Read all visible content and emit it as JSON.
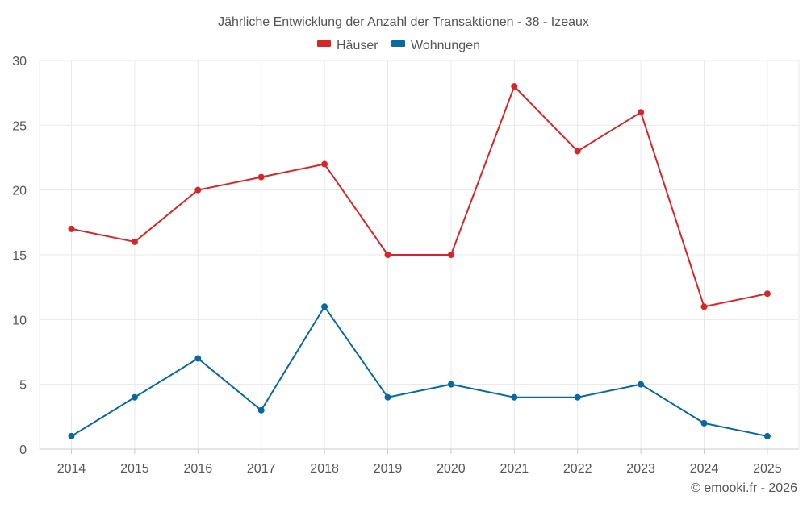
{
  "chart_data": {
    "type": "line",
    "title": "Jährliche Entwicklung der Anzahl der Transaktionen - 38 - Izeaux",
    "categories": [
      "2014",
      "2015",
      "2016",
      "2017",
      "2018",
      "2019",
      "2020",
      "2021",
      "2022",
      "2023",
      "2024",
      "2025"
    ],
    "series": [
      {
        "name": "Häuser",
        "color": "#d62728",
        "values": [
          17,
          16,
          20,
          21,
          22,
          15,
          15,
          28,
          23,
          26,
          11,
          12
        ]
      },
      {
        "name": "Wohnungen",
        "color": "#0868a0",
        "values": [
          1,
          4,
          7,
          3,
          11,
          4,
          5,
          4,
          4,
          5,
          2,
          1
        ]
      }
    ],
    "ylim": [
      0,
      30
    ],
    "yticks": [
      0,
      5,
      10,
      15,
      20,
      25,
      30
    ],
    "xlabel": "",
    "ylabel": "",
    "grid": true,
    "legend_position": "top-center"
  },
  "credit": "© emooki.fr - 2026"
}
